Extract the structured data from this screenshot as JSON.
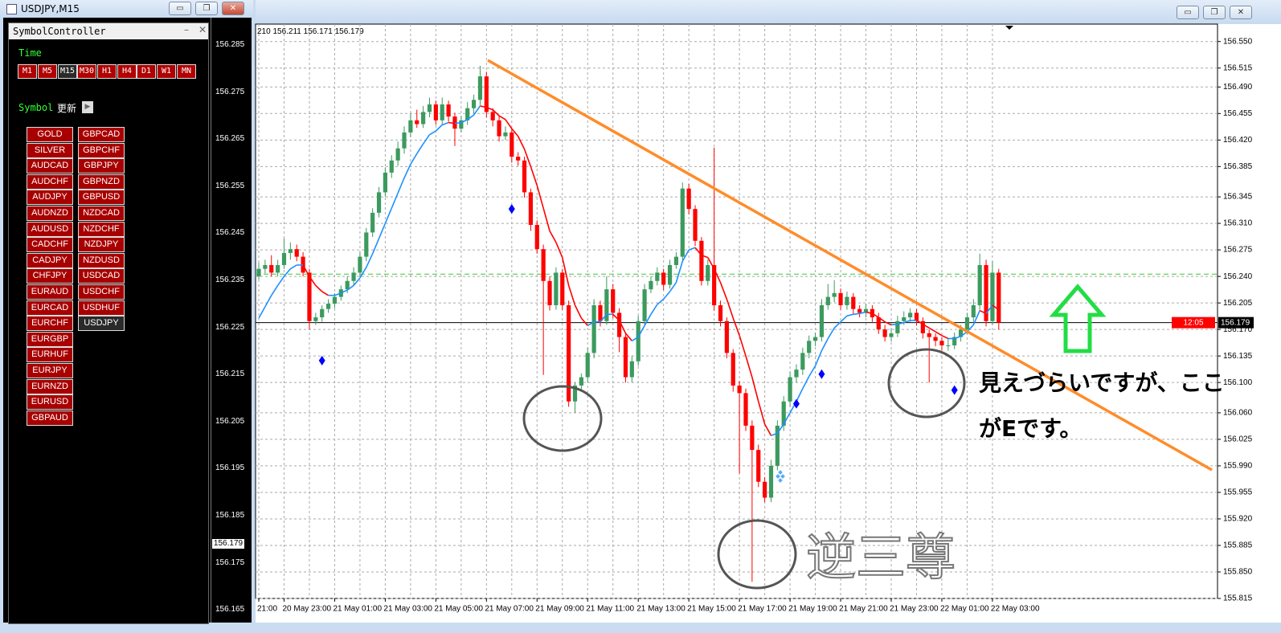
{
  "left_window": {
    "title": "USDJPY,M15",
    "panel_title": "SymbolController",
    "time_label": "Time",
    "timeframes": [
      "M1",
      "M5",
      "M15",
      "M30",
      "H1",
      "H4",
      "D1",
      "W1",
      "MN"
    ],
    "symbol_label": "Symbol",
    "refresh_label": "更新",
    "symbols_col1": [
      "GOLD",
      "SILVER",
      "AUDCAD",
      "AUDCHF",
      "AUDJPY",
      "AUDNZD",
      "AUDUSD",
      "CADCHF",
      "CADJPY",
      "CHFJPY",
      "EURAUD",
      "EURCAD",
      "EURCHF",
      "EURGBP",
      "EURHUF",
      "EURJPY",
      "EURNZD",
      "EURUSD",
      "GBPAUD"
    ],
    "symbols_col2": [
      "GBPCAD",
      "GBPCHF",
      "GBPJPY",
      "GBPNZD",
      "GBPUSD",
      "NZDCAD",
      "NZDCHF",
      "NZDJPY",
      "NZDUSD",
      "USDCAD",
      "USDCHF",
      "USDHUF",
      "USDJPY"
    ],
    "axis_labels": [
      "156.285",
      "156.275",
      "156.265",
      "156.255",
      "156.245",
      "156.235",
      "156.225",
      "156.215",
      "156.205",
      "156.195",
      "156.185",
      "156.175",
      "156.165"
    ],
    "price_box": "156.179"
  },
  "chart_data": {
    "type": "candlestick",
    "info": "210 156.211 156.171 156.179",
    "ylim": [
      155.815,
      156.573
    ],
    "yticks": [
      {
        "value": 156.55,
        "label": "156.550"
      },
      156.515,
      {
        "value": 156.49,
        "label": "156.490"
      },
      156.455,
      {
        "value": 156.42,
        "label": "156.420"
      },
      156.385,
      156.345,
      {
        "value": 156.31,
        "label": "156.310"
      },
      156.275,
      {
        "value": 156.24,
        "label": "156.240"
      },
      156.205,
      {
        "value": 156.17,
        "label": "156.170"
      },
      156.135,
      {
        "value": 156.1,
        "label": "156.100"
      },
      {
        "value": 156.06,
        "label": "156.060"
      },
      156.025,
      {
        "value": 155.99,
        "label": "155.990"
      },
      155.955,
      {
        "value": 155.92,
        "label": "155.920"
      },
      155.885,
      {
        "value": 155.85,
        "label": "155.850"
      },
      155.815
    ],
    "grid": true,
    "up_color": "#3c9a5f",
    "down_color": "#ff0000",
    "ma_up_color": "#1e90ff",
    "ma_down_color": "#ff0000",
    "marker_color": "#0000ff",
    "categories": [
      "21:00",
      null,
      null,
      null,
      "20 May 23:00",
      null,
      null,
      null,
      null,
      null,
      null,
      null,
      "21 May 01:00",
      null,
      null,
      null,
      null,
      null,
      null,
      null,
      "21 May 03:00",
      null,
      null,
      null,
      null,
      null,
      null,
      null,
      "21 May 05:00",
      null,
      null,
      null,
      null,
      null,
      null,
      null,
      "21 May 07:00",
      null,
      null,
      null,
      null,
      null,
      null,
      null,
      "21 May 09:00",
      null,
      null,
      null,
      null,
      null,
      null,
      null,
      "21 May 11:00",
      null,
      null,
      null,
      null,
      null,
      null,
      null,
      "21 May 13:00",
      null,
      null,
      null,
      null,
      null,
      null,
      null,
      "21 May 15:00",
      null,
      null,
      null,
      null,
      null,
      null,
      null,
      "21 May 17:00",
      null,
      null,
      null,
      null,
      null,
      null,
      null,
      "21 May 19:00",
      null,
      null,
      null,
      null,
      null,
      null,
      null,
      "21 May 21:00",
      null,
      null,
      null,
      null,
      null,
      null,
      null,
      "21 May 23:00",
      null,
      null,
      null,
      null,
      null,
      null,
      null,
      "22 May 01:00",
      null,
      null,
      null,
      null,
      null,
      null,
      null,
      "22 May 03:00",
      null
    ],
    "candles": [
      [
        156.24,
        156.258,
        156.236,
        156.25
      ],
      [
        156.25,
        156.262,
        156.244,
        156.255
      ],
      [
        156.255,
        156.268,
        156.24,
        156.245
      ],
      [
        156.245,
        156.262,
        156.24,
        156.255
      ],
      [
        156.255,
        156.29,
        156.25,
        156.271
      ],
      [
        156.271,
        156.285,
        156.262,
        156.276
      ],
      [
        156.276,
        156.282,
        156.26,
        156.266
      ],
      [
        156.266,
        156.272,
        156.24,
        156.245
      ],
      [
        156.245,
        156.25,
        156.17,
        156.181
      ],
      [
        156.181,
        156.192,
        156.176,
        156.186
      ],
      [
        156.186,
        156.202,
        156.18,
        156.197
      ],
      [
        156.197,
        156.21,
        156.192,
        156.204
      ],
      [
        156.204,
        156.218,
        156.198,
        156.213
      ],
      [
        156.213,
        156.228,
        156.208,
        156.223
      ],
      [
        156.223,
        156.24,
        156.218,
        156.234
      ],
      [
        156.234,
        156.252,
        156.228,
        156.245
      ],
      [
        156.245,
        156.272,
        156.24,
        156.266
      ],
      [
        156.266,
        156.304,
        156.26,
        156.298
      ],
      [
        156.298,
        156.33,
        156.292,
        156.324
      ],
      [
        156.324,
        156.358,
        156.318,
        156.351
      ],
      [
        156.351,
        156.384,
        156.345,
        156.377
      ],
      [
        156.377,
        156.4,
        156.37,
        156.393
      ],
      [
        156.393,
        156.418,
        156.386,
        156.409
      ],
      [
        156.409,
        156.438,
        156.402,
        156.43
      ],
      [
        156.43,
        156.455,
        156.424,
        156.446
      ],
      [
        156.446,
        156.46,
        156.436,
        156.441
      ],
      [
        156.441,
        156.465,
        156.436,
        156.457
      ],
      [
        156.457,
        156.476,
        156.45,
        156.467
      ],
      [
        156.467,
        156.472,
        156.44,
        156.446
      ],
      [
        156.446,
        156.476,
        156.44,
        156.467
      ],
      [
        156.467,
        156.472,
        156.444,
        156.451
      ],
      [
        156.451,
        156.456,
        156.412,
        156.435
      ],
      [
        156.435,
        156.452,
        156.43,
        156.446
      ],
      [
        156.446,
        156.47,
        156.44,
        156.462
      ],
      [
        156.462,
        156.48,
        156.455,
        156.473
      ],
      [
        156.473,
        156.518,
        156.466,
        156.504
      ],
      [
        156.504,
        156.51,
        156.45,
        156.457
      ],
      [
        156.457,
        156.462,
        156.438,
        156.446
      ],
      [
        156.446,
        156.452,
        156.418,
        156.425
      ],
      [
        156.425,
        156.438,
        156.42,
        156.43
      ],
      [
        156.43,
        156.436,
        156.39,
        156.398
      ],
      [
        156.398,
        156.404,
        156.386,
        156.393
      ],
      [
        156.393,
        156.398,
        156.344,
        156.351
      ],
      [
        156.351,
        156.356,
        156.3,
        156.308
      ],
      [
        156.308,
        156.314,
        156.27,
        156.276
      ],
      [
        156.276,
        156.282,
        156.11,
        156.234
      ],
      [
        156.234,
        156.24,
        156.195,
        156.202
      ],
      [
        156.202,
        156.252,
        156.196,
        156.245
      ],
      [
        156.245,
        156.25,
        156.196,
        156.202
      ],
      [
        156.202,
        156.208,
        156.068,
        156.075
      ],
      [
        156.075,
        156.1,
        156.06,
        156.096
      ],
      [
        156.096,
        156.112,
        156.09,
        156.107
      ],
      [
        156.107,
        156.146,
        156.1,
        156.139
      ],
      [
        156.139,
        156.21,
        156.132,
        156.202
      ],
      [
        156.202,
        156.208,
        156.174,
        156.181
      ],
      [
        156.181,
        156.24,
        156.176,
        156.223
      ],
      [
        156.223,
        156.23,
        156.185,
        156.192
      ],
      [
        156.192,
        156.198,
        156.14,
        156.16
      ],
      [
        156.16,
        156.166,
        156.1,
        156.107
      ],
      [
        156.107,
        156.135,
        156.1,
        156.128
      ],
      [
        156.128,
        156.188,
        156.122,
        156.181
      ],
      [
        156.181,
        156.23,
        156.176,
        156.223
      ],
      [
        156.223,
        156.24,
        156.218,
        156.234
      ],
      [
        156.234,
        156.252,
        156.228,
        156.245
      ],
      [
        156.245,
        156.25,
        156.222,
        156.229
      ],
      [
        156.229,
        156.262,
        156.224,
        156.255
      ],
      [
        156.255,
        156.272,
        156.25,
        156.266
      ],
      [
        156.266,
        156.364,
        156.26,
        156.356
      ],
      [
        156.356,
        156.362,
        156.322,
        156.329
      ],
      [
        156.329,
        156.334,
        156.28,
        156.287
      ],
      [
        156.287,
        156.292,
        156.228,
        156.234
      ],
      [
        156.234,
        156.262,
        156.228,
        156.255
      ],
      [
        156.255,
        156.41,
        156.195,
        156.202
      ],
      [
        156.202,
        156.208,
        156.174,
        156.181
      ],
      [
        156.181,
        156.186,
        156.132,
        156.139
      ],
      [
        156.139,
        156.144,
        156.088,
        156.096
      ],
      [
        156.096,
        156.102,
        155.98,
        156.086
      ],
      [
        156.086,
        156.092,
        156.036,
        156.043
      ],
      [
        156.043,
        156.05,
        155.837,
        156.011
      ],
      [
        156.011,
        156.018,
        155.962,
        155.969
      ],
      [
        155.969,
        155.975,
        155.942,
        155.948
      ],
      [
        155.948,
        155.998,
        155.942,
        155.99
      ],
      [
        155.99,
        156.05,
        155.984,
        156.043
      ],
      [
        156.043,
        156.082,
        156.036,
        156.075
      ],
      [
        156.075,
        156.114,
        156.068,
        156.107
      ],
      [
        156.107,
        156.124,
        156.1,
        156.117
      ],
      [
        156.117,
        156.146,
        156.11,
        156.139
      ],
      [
        156.139,
        156.162,
        156.132,
        156.155
      ],
      [
        156.155,
        156.166,
        156.148,
        156.16
      ],
      [
        156.16,
        156.21,
        156.154,
        156.202
      ],
      [
        156.202,
        156.23,
        156.196,
        156.213
      ],
      [
        156.213,
        156.235,
        156.206,
        156.218
      ],
      [
        156.218,
        156.224,
        156.196,
        156.202
      ],
      [
        156.202,
        156.22,
        156.196,
        156.213
      ],
      [
        156.213,
        156.218,
        156.19,
        156.197
      ],
      [
        156.197,
        156.202,
        156.186,
        156.192
      ],
      [
        156.192,
        156.204,
        156.186,
        156.197
      ],
      [
        156.197,
        156.202,
        156.18,
        156.186
      ],
      [
        156.186,
        156.192,
        156.164,
        156.17
      ],
      [
        156.17,
        156.176,
        156.154,
        156.16
      ],
      [
        156.16,
        156.172,
        156.154,
        156.165
      ],
      [
        156.165,
        156.188,
        156.16,
        156.181
      ],
      [
        156.181,
        156.194,
        156.176,
        156.186
      ],
      [
        156.186,
        156.198,
        156.18,
        156.192
      ],
      [
        156.192,
        156.197,
        156.175,
        156.181
      ],
      [
        156.181,
        156.186,
        156.158,
        156.165
      ],
      [
        156.165,
        156.17,
        156.1,
        156.16
      ],
      [
        156.16,
        156.165,
        156.148,
        156.155
      ],
      [
        156.155,
        156.16,
        156.142,
        156.149
      ],
      [
        156.149,
        156.158,
        156.142,
        156.149
      ],
      [
        156.149,
        156.166,
        156.144,
        156.16
      ],
      [
        156.16,
        156.176,
        156.154,
        156.17
      ],
      [
        156.17,
        156.192,
        156.164,
        156.186
      ],
      [
        156.186,
        156.21,
        156.18,
        156.202
      ],
      [
        156.202,
        156.27,
        156.196,
        156.255
      ],
      [
        156.255,
        156.262,
        156.174,
        156.181
      ],
      [
        156.181,
        156.26,
        156.176,
        156.245
      ],
      [
        156.245,
        156.25,
        156.17,
        156.179
      ]
    ],
    "ma": [
      156.185,
      156.2,
      156.215,
      156.228,
      156.24,
      156.25,
      156.255,
      156.255,
      156.24,
      156.228,
      156.22,
      156.215,
      156.215,
      156.218,
      156.222,
      156.228,
      156.238,
      156.252,
      156.27,
      156.29,
      156.31,
      156.33,
      156.35,
      156.37,
      156.388,
      156.402,
      156.415,
      156.427,
      156.432,
      156.44,
      156.443,
      156.442,
      156.443,
      156.447,
      156.453,
      156.465,
      156.463,
      156.46,
      156.452,
      156.447,
      156.435,
      156.425,
      156.408,
      156.385,
      156.36,
      156.33,
      156.3,
      156.285,
      156.265,
      156.228,
      156.202,
      156.185,
      156.175,
      156.18,
      156.18,
      156.19,
      156.19,
      156.182,
      156.165,
      156.155,
      156.16,
      156.175,
      156.19,
      156.203,
      156.21,
      156.22,
      156.232,
      156.26,
      156.275,
      156.278,
      156.268,
      156.265,
      156.25,
      156.232,
      156.21,
      156.185,
      156.162,
      156.135,
      156.107,
      156.075,
      156.045,
      156.03,
      156.033,
      156.045,
      156.06,
      156.075,
      156.092,
      156.108,
      156.122,
      156.142,
      156.158,
      156.172,
      156.18,
      156.188,
      156.19,
      156.191,
      156.193,
      156.191,
      156.186,
      156.18,
      156.176,
      156.177,
      156.179,
      156.182,
      156.182,
      156.177,
      156.172,
      156.167,
      156.162,
      156.158,
      156.158,
      156.161,
      156.167,
      156.176,
      156.195,
      156.191,
      156.202,
      156.196
    ],
    "markers": [
      null,
      null,
      null,
      null,
      null,
      null,
      null,
      null,
      null,
      null,
      156.129,
      null,
      null,
      null,
      null,
      null,
      null,
      null,
      null,
      null,
      null,
      null,
      null,
      null,
      null,
      null,
      null,
      null,
      null,
      null,
      null,
      null,
      null,
      null,
      null,
      null,
      null,
      null,
      null,
      null,
      156.329,
      null,
      null,
      null,
      null,
      null,
      null,
      null,
      null,
      null,
      null,
      null,
      null,
      null,
      null,
      null,
      null,
      null,
      null,
      null,
      null,
      null,
      null,
      null,
      null,
      null,
      null,
      null,
      null,
      null,
      null,
      null,
      null,
      null,
      null,
      null,
      null,
      null,
      null,
      null,
      null,
      null,
      null,
      null,
      null,
      156.072,
      null,
      null,
      null,
      156.111,
      null,
      null,
      null,
      null,
      null,
      null,
      null,
      null,
      null,
      null,
      null,
      null,
      null,
      null,
      null,
      null,
      null,
      null,
      null,
      null,
      156.09,
      null,
      null,
      null,
      null,
      null,
      null,
      null
    ],
    "bid": 156.179,
    "timer": "12:05",
    "alert_level": 156.243,
    "annotation_line1": "見えづらいですが、ここ",
    "annotation_line2": "がEです。",
    "pattern_label": "逆三尊"
  }
}
